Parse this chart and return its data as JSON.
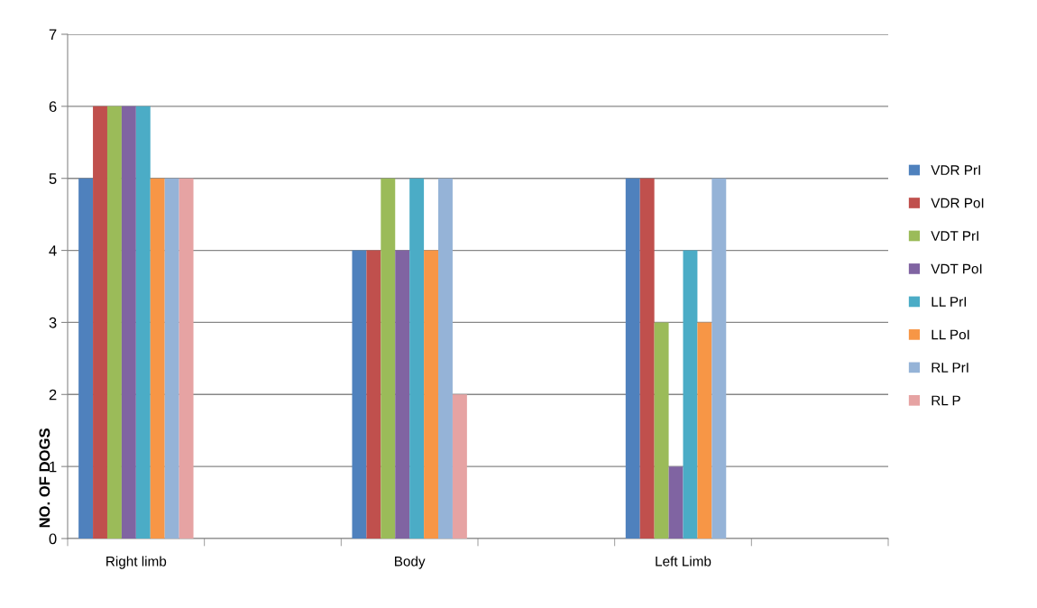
{
  "chart_data": {
    "type": "bar",
    "categories": [
      "Right limb",
      null,
      "Body",
      null,
      "Left Limb",
      null
    ],
    "ylabel": "NO. OF DOGS",
    "ylim": [
      0,
      7
    ],
    "yticks": [
      0,
      1,
      2,
      3,
      4,
      5,
      6,
      7
    ],
    "grid": "y",
    "legend": "right",
    "series": [
      {
        "name": "VDR PrI",
        "color": "#4f81bd",
        "values": [
          5,
          null,
          4,
          null,
          5,
          null
        ]
      },
      {
        "name": "VDR PoI",
        "color": "#c0504d",
        "values": [
          6,
          null,
          4,
          null,
          5,
          null
        ]
      },
      {
        "name": "VDT PrI",
        "color": "#9bbb59",
        "values": [
          6,
          null,
          5,
          null,
          3,
          null
        ]
      },
      {
        "name": "VDT PoI",
        "color": "#8064a2",
        "values": [
          6,
          null,
          4,
          null,
          1,
          null
        ]
      },
      {
        "name": "LL PrI",
        "color": "#4bacc6",
        "values": [
          6,
          null,
          5,
          null,
          4,
          null
        ]
      },
      {
        "name": "LL PoI",
        "color": "#f79646",
        "values": [
          5,
          null,
          4,
          null,
          3,
          null
        ]
      },
      {
        "name": "RL PrI",
        "color": "#95b3d7",
        "values": [
          5,
          null,
          5,
          null,
          5,
          null
        ]
      },
      {
        "name": "RL P",
        "color": "#e6a3a3",
        "values": [
          5,
          null,
          2,
          null,
          null,
          null
        ]
      }
    ]
  }
}
